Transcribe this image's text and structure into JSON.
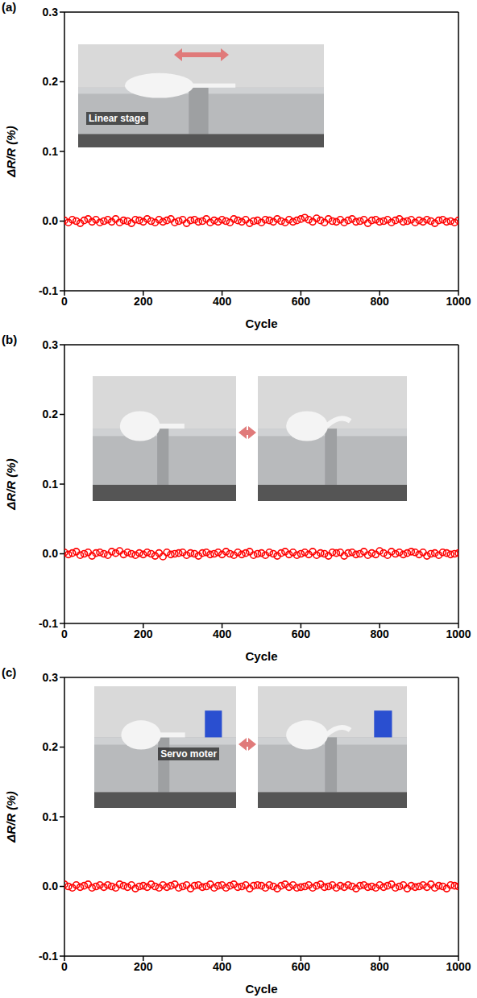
{
  "chart_data": [
    {
      "type": "line",
      "panel_label": "(a)",
      "x_label": "Cycle",
      "y_label": "ΔR/R (%)",
      "annotations": [
        "Linear stage"
      ],
      "color": "#ff0000",
      "marker": "circle",
      "line_style": "none",
      "xlim": [
        0,
        1000
      ],
      "xticks": [
        0,
        200,
        400,
        600,
        800,
        1000
      ],
      "ylim": [
        -0.1,
        0.3
      ],
      "yticks": [
        -0.1,
        {
          "value": 0,
          "label": "0.0"
        },
        0.1,
        0.2,
        0.3
      ],
      "x": [
        0,
        10,
        20,
        30,
        40,
        50,
        60,
        70,
        80,
        90,
        100,
        110,
        120,
        130,
        140,
        150,
        160,
        170,
        180,
        190,
        200,
        210,
        220,
        230,
        240,
        250,
        260,
        270,
        280,
        290,
        300,
        310,
        320,
        330,
        340,
        350,
        360,
        370,
        380,
        390,
        400,
        410,
        420,
        430,
        440,
        450,
        460,
        470,
        480,
        490,
        500,
        510,
        520,
        530,
        540,
        550,
        560,
        570,
        580,
        590,
        600,
        610,
        620,
        630,
        640,
        650,
        660,
        670,
        680,
        690,
        700,
        710,
        720,
        730,
        740,
        750,
        760,
        770,
        780,
        790,
        800,
        810,
        820,
        830,
        840,
        850,
        860,
        870,
        880,
        890,
        900,
        910,
        920,
        930,
        940,
        950,
        960,
        970,
        980,
        990,
        1000
      ],
      "values": [
        0.001,
        -0.002,
        0.002,
        0.0,
        -0.003,
        0.001,
        0.003,
        -0.001,
        0.002,
        -0.002,
        0.0,
        0.002,
        -0.001,
        0.003,
        -0.002,
        0.001,
        0.0,
        -0.003,
        0.002,
        0.001,
        -0.001,
        0.003,
        0.0,
        -0.002,
        0.002,
        -0.001,
        0.001,
        0.003,
        -0.002,
        0.0,
        0.002,
        -0.003,
        0.001,
        0.002,
        -0.001,
        0.0,
        0.003,
        -0.002,
        0.001,
        -0.001,
        0.002,
        0.0,
        -0.002,
        0.003,
        0.001,
        -0.001,
        0.002,
        -0.003,
        0.0,
        0.001,
        -0.002,
        0.002,
        0.001,
        -0.001,
        0.003,
        0.0,
        -0.002,
        0.002,
        -0.001,
        0.001,
        0.003,
        0.005,
        0.002,
        -0.001,
        0.004,
        0.001,
        -0.002,
        0.003,
        0.0,
        -0.001,
        0.002,
        -0.002,
        0.001,
        0.003,
        -0.001,
        0.0,
        0.002,
        -0.003,
        0.001,
        0.002,
        -0.001,
        0.0,
        0.002,
        -0.002,
        0.001,
        0.003,
        -0.001,
        0.0,
        0.002,
        -0.002,
        0.001,
        -0.001,
        0.002,
        0.0,
        -0.003,
        0.001,
        0.002,
        -0.001,
        0.0,
        -0.002,
        0.001
      ]
    },
    {
      "type": "line",
      "panel_label": "(b)",
      "x_label": "Cycle",
      "y_label": "ΔR/R (%)",
      "annotations": [],
      "color": "#ff0000",
      "marker": "circle",
      "line_style": "none",
      "xlim": [
        0,
        1000
      ],
      "xticks": [
        0,
        200,
        400,
        600,
        800,
        1000
      ],
      "ylim": [
        -0.1,
        0.3
      ],
      "yticks": [
        -0.1,
        {
          "value": 0,
          "label": "0.0"
        },
        0.1,
        0.2,
        0.3
      ],
      "x": [
        0,
        10,
        20,
        30,
        40,
        50,
        60,
        70,
        80,
        90,
        100,
        110,
        120,
        130,
        140,
        150,
        160,
        170,
        180,
        190,
        200,
        210,
        220,
        230,
        240,
        250,
        260,
        270,
        280,
        290,
        300,
        310,
        320,
        330,
        340,
        350,
        360,
        370,
        380,
        390,
        400,
        410,
        420,
        430,
        440,
        450,
        460,
        470,
        480,
        490,
        500,
        510,
        520,
        530,
        540,
        550,
        560,
        570,
        580,
        590,
        600,
        610,
        620,
        630,
        640,
        650,
        660,
        670,
        680,
        690,
        700,
        710,
        720,
        730,
        740,
        750,
        760,
        770,
        780,
        790,
        800,
        810,
        820,
        830,
        840,
        850,
        860,
        870,
        880,
        890,
        900,
        910,
        920,
        930,
        940,
        950,
        960,
        970,
        980,
        990,
        1000
      ],
      "values": [
        0.002,
        -0.001,
        0.001,
        0.003,
        -0.002,
        0.0,
        0.002,
        -0.003,
        0.001,
        0.002,
        0.0,
        -0.002,
        0.003,
        0.001,
        0.004,
        -0.001,
        0.002,
        0.0,
        -0.002,
        0.001,
        -0.001,
        0.002,
        0.0,
        -0.003,
        0.001,
        -0.004,
        0.002,
        -0.001,
        0.0,
        0.001,
        0.002,
        -0.002,
        0.001,
        0.0,
        -0.003,
        0.001,
        0.002,
        -0.001,
        0.0,
        0.002,
        -0.001,
        0.003,
        0.0,
        -0.002,
        0.002,
        -0.001,
        0.001,
        0.003,
        -0.002,
        0.0,
        0.001,
        -0.002,
        0.002,
        0.0,
        -0.003,
        0.001,
        0.003,
        -0.001,
        0.002,
        -0.002,
        0.0,
        0.002,
        -0.001,
        0.003,
        -0.002,
        0.001,
        0.0,
        -0.003,
        0.002,
        0.001,
        0.002,
        -0.003,
        0.001,
        0.002,
        -0.001,
        0.0,
        0.003,
        -0.002,
        0.001,
        -0.001,
        0.004,
        0.001,
        -0.002,
        0.003,
        0.0,
        0.002,
        -0.001,
        0.001,
        0.003,
        0.002,
        -0.001,
        0.002,
        -0.003,
        0.0,
        0.001,
        -0.002,
        0.002,
        0.001,
        -0.001,
        0.0,
        0.001
      ]
    },
    {
      "type": "line",
      "panel_label": "(c)",
      "x_label": "Cycle",
      "y_label": "ΔR/R (%)",
      "annotations": [
        "Servo moter"
      ],
      "color": "#ff0000",
      "marker": "circle",
      "line_style": "none",
      "xlim": [
        0,
        1000
      ],
      "xticks": [
        0,
        200,
        400,
        600,
        800,
        1000
      ],
      "ylim": [
        -0.1,
        0.3
      ],
      "yticks": [
        -0.1,
        {
          "value": 0,
          "label": "0.0"
        },
        0.1,
        0.2,
        0.3
      ],
      "x": [
        0,
        10,
        20,
        30,
        40,
        50,
        60,
        70,
        80,
        90,
        100,
        110,
        120,
        130,
        140,
        150,
        160,
        170,
        180,
        190,
        200,
        210,
        220,
        230,
        240,
        250,
        260,
        270,
        280,
        290,
        300,
        310,
        320,
        330,
        340,
        350,
        360,
        370,
        380,
        390,
        400,
        410,
        420,
        430,
        440,
        450,
        460,
        470,
        480,
        490,
        500,
        510,
        520,
        530,
        540,
        550,
        560,
        570,
        580,
        590,
        600,
        610,
        620,
        630,
        640,
        650,
        660,
        670,
        680,
        690,
        700,
        710,
        720,
        730,
        740,
        750,
        760,
        770,
        780,
        790,
        800,
        810,
        820,
        830,
        840,
        850,
        860,
        870,
        880,
        890,
        900,
        910,
        920,
        930,
        940,
        950,
        960,
        970,
        980,
        990,
        1000
      ],
      "values": [
        0.003,
        0.0,
        -0.002,
        0.002,
        -0.001,
        0.001,
        0.003,
        -0.002,
        0.0,
        0.002,
        -0.001,
        0.002,
        0.0,
        -0.002,
        0.003,
        0.001,
        -0.001,
        0.002,
        -0.003,
        0.0,
        0.001,
        -0.001,
        0.003,
        0.0,
        -0.002,
        0.002,
        -0.001,
        0.001,
        0.003,
        -0.002,
        0.0,
        0.002,
        -0.003,
        0.001,
        0.002,
        -0.001,
        0.0,
        0.003,
        -0.002,
        0.001,
        0.002,
        -0.002,
        0.001,
        0.003,
        -0.001,
        0.0,
        0.002,
        -0.003,
        0.001,
        0.002,
        0.001,
        -0.002,
        0.002,
        0.0,
        -0.003,
        0.001,
        0.003,
        -0.001,
        0.002,
        -0.002,
        -0.001,
        0.0,
        0.002,
        -0.002,
        0.001,
        0.003,
        -0.001,
        0.0,
        0.002,
        -0.002,
        0.001,
        -0.001,
        0.002,
        0.0,
        -0.003,
        0.001,
        0.002,
        -0.001,
        0.0,
        -0.002,
        0.002,
        -0.001,
        0.001,
        0.003,
        -0.002,
        0.0,
        0.002,
        -0.003,
        0.001,
        -0.001,
        0.0,
        0.002,
        -0.001,
        0.003,
        -0.002,
        0.001,
        0.0,
        -0.003,
        0.002,
        0.001,
        0.0
      ]
    }
  ]
}
